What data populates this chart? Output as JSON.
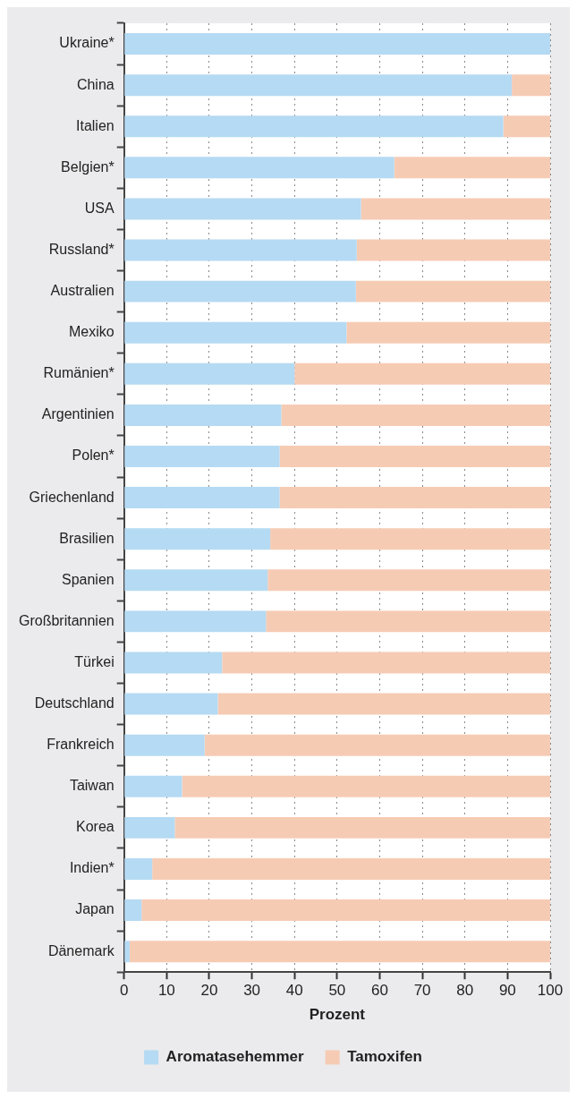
{
  "chart_data": {
    "type": "bar",
    "orientation": "horizontal",
    "stacked": true,
    "categories": [
      "Ukraine*",
      "China",
      "Italien",
      "Belgien*",
      "USA",
      "Russland*",
      "Australien",
      "Mexiko",
      "Rumänien*",
      "Argentinien",
      "Polen*",
      "Griechenland",
      "Brasilien",
      "Spanien",
      "Großbritannien",
      "Türkei",
      "Deutschland",
      "Frankreich",
      "Taiwan",
      "Korea",
      "Indien*",
      "Japan",
      "Dänemark"
    ],
    "series": [
      {
        "name": "Aromatasehemmer",
        "color": "#b5daf3",
        "values": [
          100,
          91,
          89,
          63.4,
          55.6,
          54.6,
          54.4,
          52.2,
          40,
          36.9,
          36.5,
          36.5,
          34.3,
          33.7,
          33.3,
          23,
          22,
          18.9,
          13.6,
          11.9,
          6.6,
          4.1,
          1.3
        ]
      },
      {
        "name": "Tamoxifen",
        "color": "#f6cbb4",
        "values": [
          0,
          9,
          11,
          36.6,
          44.4,
          45.4,
          45.6,
          47.8,
          60,
          63.1,
          63.5,
          63.5,
          65.7,
          66.3,
          66.7,
          77,
          78,
          81.1,
          86.4,
          88.1,
          93.4,
          95.9,
          98.7
        ]
      }
    ],
    "xlabel": "Prozent",
    "xlim": [
      0,
      100
    ],
    "xticks": [
      0,
      10,
      20,
      30,
      40,
      50,
      60,
      70,
      80,
      90,
      100
    ],
    "grid": "x",
    "legend": "bottom"
  }
}
